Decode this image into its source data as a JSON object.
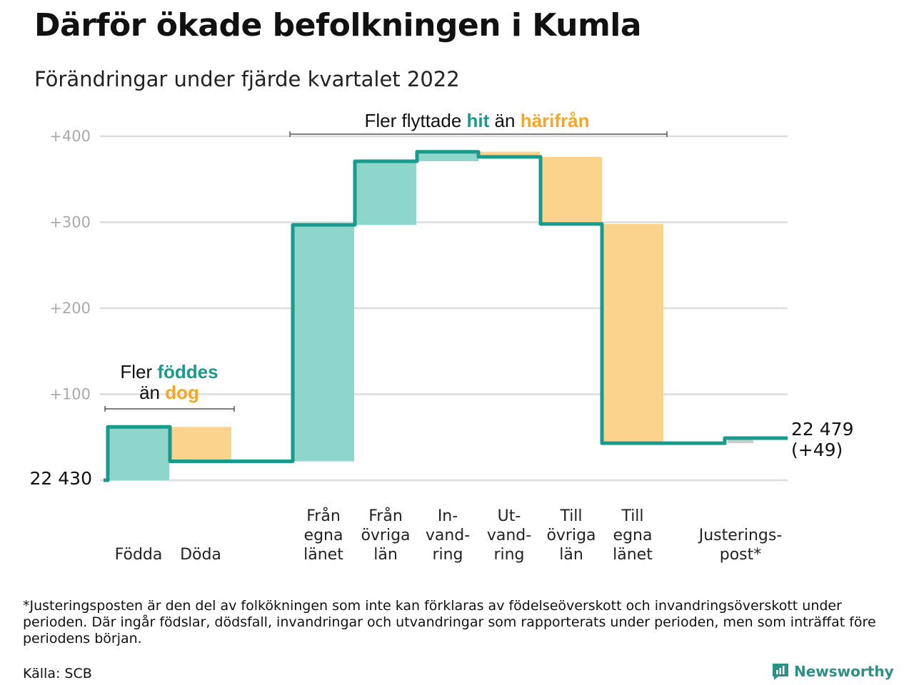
{
  "title": "Därför ökade befolkningen i Kumla",
  "subtitle": "Förändringar under fjärde kvartalet 2022",
  "colors": {
    "increase": "#8ed5cb",
    "decrease": "#fbd38d",
    "adjustment": "#cccccc",
    "line": "#1a9a8c",
    "highlight_green": "#1a9a8c",
    "highlight_orange": "#f5a623",
    "grid": "#dddddd"
  },
  "annotations": {
    "births": {
      "line1_pre": "Fler ",
      "line1_hl": "föddes",
      "line2_pre": "än ",
      "line2_hl": "dog"
    },
    "moves": {
      "pre": "Fler flyttade ",
      "hl1": "hit",
      "mid": " än ",
      "hl2": "härifrån"
    }
  },
  "start_label": "22 430",
  "end_label": {
    "value": "22 479",
    "change": "(+49)"
  },
  "chart_data": {
    "type": "waterfall",
    "title": "Därför ökade befolkningen i Kumla",
    "subtitle": "Förändringar under fjärde kvartalet 2022",
    "baseline_population": 22430,
    "final_population": 22479,
    "net_change": 49,
    "y_unit": "change from start of period",
    "ylim": [
      0,
      400
    ],
    "yticks": [
      {
        "value": 100,
        "label": "+100"
      },
      {
        "value": 200,
        "label": "+200"
      },
      {
        "value": 300,
        "label": "+300"
      },
      {
        "value": 400,
        "label": "+400"
      }
    ],
    "grid": true,
    "steps": [
      {
        "label": [
          "Födda"
        ],
        "kind": "increase",
        "value": 62
      },
      {
        "label": [
          "Döda"
        ],
        "kind": "decrease",
        "value": -40
      },
      {
        "label": [
          "Från",
          "egna",
          "länet"
        ],
        "kind": "increase",
        "value": 275
      },
      {
        "label": [
          "Från",
          "övriga",
          "län"
        ],
        "kind": "increase",
        "value": 74
      },
      {
        "label": [
          "In-",
          "vand-",
          "ring"
        ],
        "kind": "increase",
        "value": 11
      },
      {
        "label": [
          "Ut-",
          "vand-",
          "ring"
        ],
        "kind": "decrease",
        "value": -6
      },
      {
        "label": [
          "Till",
          "övriga",
          "län"
        ],
        "kind": "decrease",
        "value": -78
      },
      {
        "label": [
          "Till",
          "egna",
          "länet"
        ],
        "kind": "decrease",
        "value": -255
      },
      {
        "label": [
          "Justerings-",
          "post*"
        ],
        "kind": "adjustment",
        "value": 6
      }
    ]
  },
  "footnote": "*Justeringsposten är den del av folkökningen som inte kan förklaras av födelseöverskott och invandringsöverskott under perioden. Där ingår födslar, dödsfall, invandringar och utvandringar som rapporterats under perioden, men som inträffat före periodens början.",
  "source": "Källa: SCB",
  "brand": {
    "name": "Newsworthy",
    "icon": "newsworthy-logo-icon"
  }
}
